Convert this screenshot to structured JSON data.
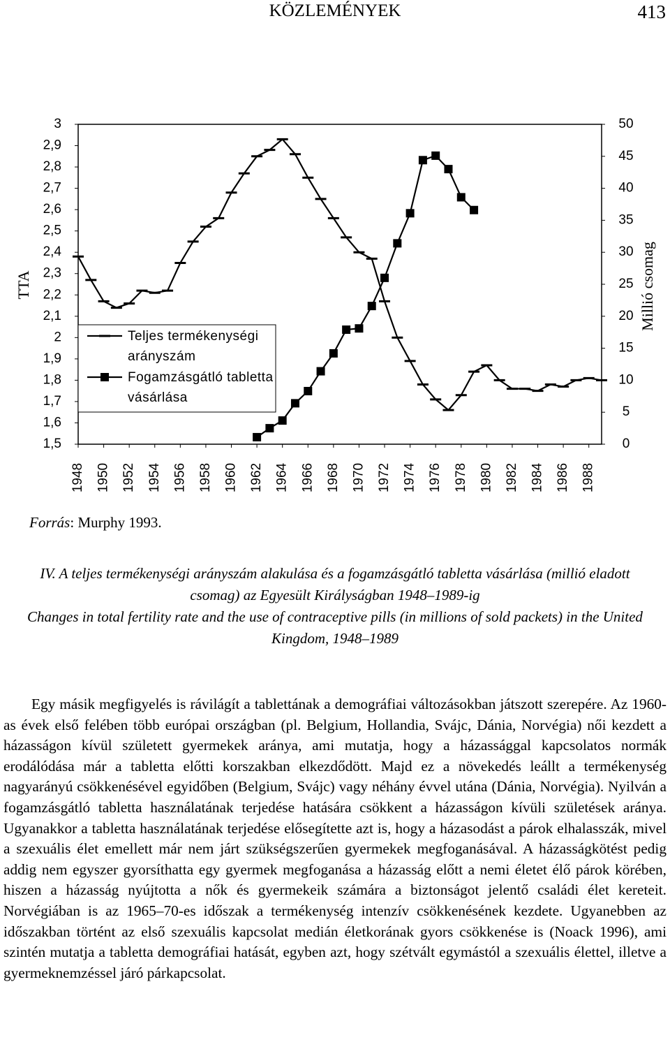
{
  "header": {
    "title": "KÖZLEMÉNYEK",
    "page": "413"
  },
  "chart_data": {
    "type": "line",
    "y_label": "TTA",
    "y2_label": "Millió csomag",
    "x": [
      1948,
      1949,
      1950,
      1951,
      1952,
      1953,
      1954,
      1955,
      1956,
      1957,
      1958,
      1959,
      1960,
      1961,
      1962,
      1963,
      1964,
      1965,
      1966,
      1967,
      1968,
      1969,
      1970,
      1971,
      1972,
      1973,
      1974,
      1975,
      1976,
      1977,
      1978,
      1979,
      1980,
      1981,
      1982,
      1983,
      1984,
      1985,
      1986,
      1987,
      1988,
      1989
    ],
    "xlim": [
      1948,
      1989
    ],
    "xticks": [
      1948,
      1950,
      1952,
      1954,
      1956,
      1958,
      1960,
      1962,
      1964,
      1966,
      1968,
      1970,
      1972,
      1974,
      1976,
      1978,
      1980,
      1982,
      1984,
      1986,
      1988
    ],
    "ylim": [
      1.5,
      3
    ],
    "yticks": [
      {
        "value": 1.5,
        "label": "1,5"
      },
      {
        "value": 1.6,
        "label": "1,6"
      },
      {
        "value": 1.7,
        "label": "1,7"
      },
      {
        "value": 1.8,
        "label": "1,8"
      },
      {
        "value": 1.9,
        "label": "1,9"
      },
      2,
      {
        "value": 2.1,
        "label": "2,1"
      },
      {
        "value": 2.2,
        "label": "2,2"
      },
      {
        "value": 2.3,
        "label": "2,3"
      },
      {
        "value": 2.4,
        "label": "2,4"
      },
      {
        "value": 2.5,
        "label": "2,5"
      },
      {
        "value": 2.6,
        "label": "2,6"
      },
      {
        "value": 2.7,
        "label": "2,7"
      },
      {
        "value": 2.8,
        "label": "2,8"
      },
      {
        "value": 2.9,
        "label": "2,9"
      },
      3
    ],
    "y2lim": [
      0,
      50
    ],
    "y2ticks": [
      0,
      5,
      10,
      15,
      20,
      25,
      30,
      35,
      40,
      45,
      50
    ],
    "series": [
      {
        "name": "Teljes termékenységi arányszám",
        "color": "#000000",
        "marker": "dash",
        "axis": "y",
        "values": [
          2.38,
          2.27,
          2.17,
          2.14,
          2.16,
          2.22,
          2.21,
          2.22,
          2.35,
          2.45,
          2.52,
          2.56,
          2.68,
          2.77,
          2.85,
          2.88,
          2.93,
          2.86,
          2.75,
          2.65,
          2.56,
          2.47,
          2.4,
          2.37,
          2.17,
          2.0,
          1.89,
          1.78,
          1.71,
          1.66,
          1.73,
          1.84,
          1.87,
          1.8,
          1.76,
          1.76,
          1.75,
          1.78,
          1.77,
          1.8,
          1.81,
          1.8
        ]
      },
      {
        "name": "Fogamzásgátló tabletta vásárlása",
        "color": "#000000",
        "marker": "square",
        "axis": "y2",
        "values": [
          null,
          null,
          null,
          null,
          null,
          null,
          null,
          null,
          null,
          null,
          null,
          null,
          null,
          null,
          1.1,
          2.5,
          3.7,
          6.4,
          8.3,
          11.4,
          14.2,
          17.9,
          18.1,
          21.6,
          26.0,
          31.4,
          36.1,
          44.4,
          45.1,
          43.0,
          38.6,
          36.6,
          null,
          null,
          null,
          null,
          null,
          null,
          null,
          null,
          null,
          null
        ]
      }
    ]
  },
  "source": {
    "label": "Forrás",
    "text": ": Murphy 1993."
  },
  "caption": {
    "hu": "IV. A teljes termékenységi arányszám alakulása és a fogamzásgátló tabletta vásárlása (millió eladott csomag) az Egyesült Királyságban 1948–1989-ig",
    "en": "Changes in total fertility rate and the use of contraceptive pills (in millions of sold packets) in the United Kingdom, 1948–1989"
  },
  "body": "Egy másik megfigyelés is rávilágít a tablettának a demográfiai változásokban játszott szerepére. Az 1960-as évek első felében több európai országban (pl. Belgium, Hollandia, Svájc, Dánia, Norvégia) női kezdett a házasságon kívül született gyermekek aránya, ami mutatja, hogy a házassággal kapcsolatos normák erodálódása már a tabletta előtti korszakban elkezdődött. Majd ez a növekedés leállt a termékenység nagyarányú csökkenésével egyidőben (Belgium, Svájc) vagy néhány évvel utána (Dánia, Norvégia). Nyilván a fogamzásgátló tabletta használatának terjedése hatására csökkent a házasságon kívüli születések aránya. Ugyanakkor a tabletta használatának terjedése elősegítette azt is, hogy a házasodást a párok elhalasszák, mivel a szexuális élet emellett már nem járt szükségszerűen gyermekek megfoganásával. A házasságkötést pedig addig nem egyszer gyorsíthatta egy gyermek megfoganása a házasság előtt a nemi életet élő párok körében, hiszen a házasság nyújtotta a nők és gyermekeik számára a biztonságot jelentő családi élet kereteit. Norvégiában is az 1965–70-es időszak a termékenység intenzív csökkenésének kezdete. Ugyanebben az időszakban történt az első szexuális kapcsolat medián életkorának gyors csökkenése is (Noack 1996), ami szintén mutatja a tabletta demográfiai hatását, egyben azt, hogy szétvált egymástól a szexuális élettel, illetve a gyermeknemzéssel járó párkapcsolat."
}
